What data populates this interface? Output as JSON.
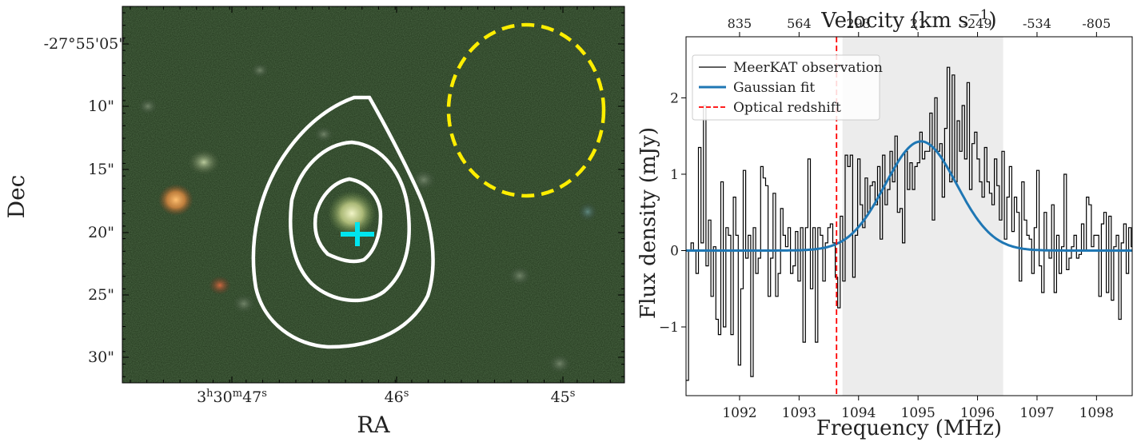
{
  "left_panel": {
    "title": "",
    "xlabel": "RA",
    "ylabel": "Dec",
    "x_ticks": [
      {
        "label": "3h30m47s"
      },
      {
        "label": "46s"
      },
      {
        "label": "45s"
      }
    ],
    "y_ticks": [
      "-27°55'05\"",
      "10\"",
      "15\"",
      "20\"",
      "25\"",
      "30\""
    ],
    "colors": {
      "contour": "#ffffff",
      "marker": "#00e5ee",
      "aperture": "#ffee00",
      "background": "#1f3319"
    }
  },
  "chart_data": {
    "type": "line",
    "title": "",
    "xlabel": "Frequency (MHz)",
    "ylabel": "Flux density (mJy)",
    "top_xlabel": "Velocity (km s",
    "top_xlabel_exponent": "−1",
    "top_xlabel_suffix": ")",
    "xlim": [
      1091.1,
      1098.6
    ],
    "ylim": [
      -1.9,
      2.8
    ],
    "x_ticks": [
      1092,
      1093,
      1094,
      1095,
      1096,
      1097,
      1098
    ],
    "x_tick_labels": [
      "1092",
      "1093",
      "1094",
      "1095",
      "1096",
      "1097",
      "1098"
    ],
    "y_ticks": [
      -1,
      0,
      1,
      2
    ],
    "y_tick_labels": [
      "−1",
      "0",
      "1",
      "2"
    ],
    "top_ticks": [
      {
        "label": "835",
        "freq": 1092.0
      },
      {
        "label": "564",
        "freq": 1093.0
      },
      {
        "label": "293",
        "freq": 1094.0
      },
      {
        "label": "21",
        "freq": 1095.0
      },
      {
        "label": "-249",
        "freq": 1096.0
      },
      {
        "label": "-534",
        "freq": 1097.0
      },
      {
        "label": "-805",
        "freq": 1098.0
      }
    ],
    "shaded_region": [
      1093.73,
      1096.43
    ],
    "optical_redshift_freq": 1093.63,
    "legend_position": "top-left",
    "series": [
      {
        "name": "MeerKAT observation",
        "color": "#000000",
        "style": "step",
        "x_start": 1091.1,
        "x_step": 0.0418,
        "values": [
          -1.7,
          0.0,
          0.1,
          0.0,
          -0.3,
          1.35,
          0.1,
          1.9,
          -0.2,
          0.4,
          -0.6,
          0.05,
          -0.9,
          -1.1,
          0.9,
          -1.0,
          0.3,
          0.2,
          -1.1,
          0.7,
          0.2,
          -1.5,
          -0.5,
          1.05,
          -0.1,
          0.2,
          -1.65,
          0.3,
          -0.3,
          -0.1,
          1.1,
          0.95,
          0.85,
          -0.6,
          -0.1,
          0.75,
          -0.6,
          -0.3,
          0.55,
          0.2,
          0.05,
          0.3,
          -0.3,
          -0.2,
          0.25,
          -0.4,
          0.3,
          -1.2,
          0.3,
          1.2,
          -0.5,
          0.3,
          -1.2,
          0.3,
          0.2,
          -0.4,
          0.1,
          0.3,
          0.35,
          0.1,
          -0.35,
          -0.75,
          0.45,
          -0.4,
          1.25,
          1.1,
          1.25,
          -0.35,
          0.2,
          1.2,
          0.6,
          0.3,
          0.95,
          0.5,
          0.85,
          0.9,
          0.6,
          1.1,
          0.15,
          1.25,
          0.6,
          0.8,
          1.3,
          0.9,
          1.5,
          0.5,
          0.55,
          0.1,
          1.3,
          0.8,
          1.15,
          0.8,
          1.1,
          1.15,
          1.55,
          1.2,
          1.3,
          1.3,
          1.8,
          0.4,
          2.0,
          1.3,
          1.4,
          0.7,
          1.6,
          2.4,
          0.9,
          2.3,
          0.9,
          1.7,
          1.3,
          1.9,
          1.2,
          2.2,
          0.8,
          1.4,
          1.55,
          1.2,
          0.9,
          0.7,
          1.35,
          0.9,
          0.75,
          0.6,
          1.2,
          0.85,
          0.4,
          1.3,
          0.15,
          0.7,
          1.1,
          0.25,
          0.7,
          0.5,
          -0.4,
          0.9,
          0.4,
          0.2,
          0.15,
          -0.3,
          0.3,
          1.05,
          -0.2,
          -0.55,
          0.5,
          0.0,
          -0.1,
          0.6,
          -0.55,
          0.2,
          -0.3,
          0.05,
          1.0,
          -0.25,
          -0.1,
          0.05,
          0.2,
          -0.1,
          -0.05,
          0.35,
          0.0,
          0.7,
          0.6,
          0.05,
          0.2,
          0.2,
          -0.6,
          0.35,
          0.5,
          -0.55,
          0.45,
          -0.65,
          0.05,
          0.2,
          -0.9,
          0.1,
          0.35,
          -0.3,
          0.3,
          0.05,
          -0.1,
          0.3,
          0.5,
          0.35
        ]
      },
      {
        "name": "Gaussian fit",
        "color": "#1f77b4",
        "style": "line",
        "amplitude": 1.43,
        "center": 1095.05,
        "sigma": 0.6
      },
      {
        "name": "Optical redshift",
        "color": "#ff0000",
        "style": "dashed-vertical"
      }
    ]
  }
}
